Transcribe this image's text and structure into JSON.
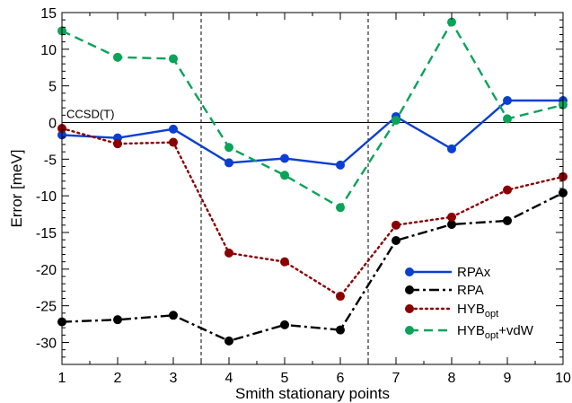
{
  "chart_data": {
    "type": "line",
    "xlabel": "Smith stationary points",
    "ylabel": "Error [meV]",
    "xlim": [
      1,
      10
    ],
    "ylim": [
      -33,
      15
    ],
    "xticks": [
      1,
      2,
      3,
      4,
      5,
      6,
      7,
      8,
      9,
      10
    ],
    "yticks": [
      15,
      10,
      5,
      0,
      -5,
      -10,
      -15,
      -20,
      -25,
      -30
    ],
    "grid": false,
    "legend_position": "bottom-right",
    "reference_line": {
      "y": 0,
      "label": "CCSD(T)"
    },
    "vertical_separators": [
      3.5,
      6.5
    ],
    "x": [
      1,
      2,
      3,
      4,
      5,
      6,
      7,
      8,
      9,
      10
    ],
    "series": [
      {
        "name": "RPAx",
        "label_main": "RPAx",
        "label_sub": "",
        "label_suffix": "",
        "color": "#0b3fd1",
        "dash": "solid",
        "values": [
          -1.7,
          -2.1,
          -0.9,
          -5.5,
          -4.9,
          -5.8,
          0.8,
          -3.6,
          3.0,
          3.0
        ]
      },
      {
        "name": "RPA",
        "label_main": "RPA",
        "label_sub": "",
        "label_suffix": "",
        "color": "#000000",
        "dash": "dashdot",
        "values": [
          -27.2,
          -26.9,
          -26.3,
          -29.8,
          -27.6,
          -28.3,
          -16.1,
          -13.9,
          -13.4,
          -9.6
        ]
      },
      {
        "name": "HYBopt",
        "label_main": "HYB",
        "label_sub": "opt",
        "label_suffix": "",
        "color": "#8b0000",
        "dash": "dotted",
        "values": [
          -0.8,
          -2.9,
          -2.7,
          -17.8,
          -19.0,
          -23.7,
          -14.0,
          -12.9,
          -9.2,
          -7.4
        ]
      },
      {
        "name": "HYBopt+vdW",
        "label_main": "HYB",
        "label_sub": "opt",
        "label_suffix": "+vdW",
        "color": "#0aa35a",
        "dash": "dashed",
        "values": [
          12.5,
          8.9,
          8.7,
          -3.4,
          -7.2,
          -11.6,
          0.3,
          13.7,
          0.5,
          2.4
        ]
      }
    ]
  }
}
